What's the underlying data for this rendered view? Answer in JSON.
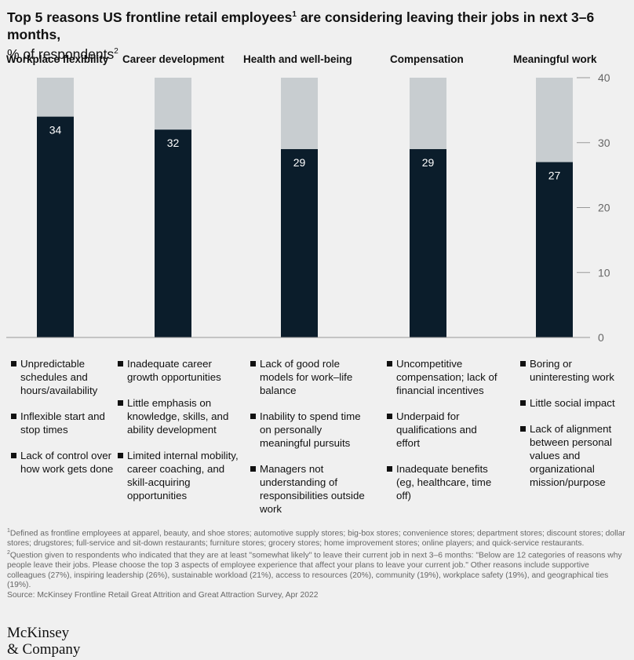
{
  "title": {
    "main": "Top 5 reasons US frontline retail employees",
    "main_sup": "1",
    "main_rest": " are considering leaving their jobs in next 3–6 months,",
    "sub": "% of respondents",
    "sub_sup": "2"
  },
  "chart_data": {
    "type": "bar",
    "categories": [
      "Workplace flexibility",
      "Career development",
      "Health and well-being",
      "Compensation",
      "Meaningful work"
    ],
    "values": [
      34,
      32,
      29,
      29,
      27
    ],
    "ylim": [
      0,
      40
    ],
    "yticks": [
      "0",
      "10",
      "20",
      "30",
      "40"
    ],
    "grid": false,
    "colors": {
      "bar": "#0b1d2b",
      "track": "#c8cdd0",
      "value_label": "#ffffff",
      "axis": "#999999"
    }
  },
  "reasons": [
    [
      "Unpredictable schedules and hours/availability",
      "Inflexible start and stop times",
      "Lack of control over how work gets done"
    ],
    [
      "Inadequate career growth opportunities",
      "Little emphasis on knowledge, skills, and ability development",
      "Limited internal mobility, career coaching, and skill-acquiring opportunities"
    ],
    [
      "Lack of good role models for work–life balance",
      "Inability to spend time on personally meaningful pursuits",
      "Managers not understanding of responsibilities outside work"
    ],
    [
      "Uncompetitive compensation; lack of financial incentives",
      "Underpaid for qualifications and effort",
      "Inadequate benefits (eg, healthcare, time off)"
    ],
    [
      "Boring or uninteresting work",
      "Little social impact",
      "Lack of alignment between personal values and organizational mission/purpose"
    ]
  ],
  "footnotes": {
    "fn1_mark": "1",
    "fn1": "Defined as frontline employees at apparel, beauty, and shoe stores; automotive supply stores; big-box stores; convenience stores; department stores; discount stores; dollar stores; drugstores; full-service and sit-down restaurants; furniture stores; grocery stores; home improvement stores; online players; and quick-service restaurants.",
    "fn2_mark": "2",
    "fn2": "Question given to respondents who indicated that they are at least \"somewhat likely\" to leave their current job in next 3–6 months: \"Below are 12 categories of reasons why people leave their jobs. Please choose the top 3 aspects of employee experience that affect your plans to leave your current job.\" Other reasons include supportive colleagues (27%), inspiring leadership (26%), sustainable workload (21%), access to resources (20%), community (19%), workplace safety (19%), and geographical ties (19%).",
    "source": "Source: McKinsey Frontline Retail Great Attrition and Great Attraction Survey, Apr 2022"
  },
  "logo": {
    "line1": "McKinsey",
    "line2": "& Company"
  }
}
